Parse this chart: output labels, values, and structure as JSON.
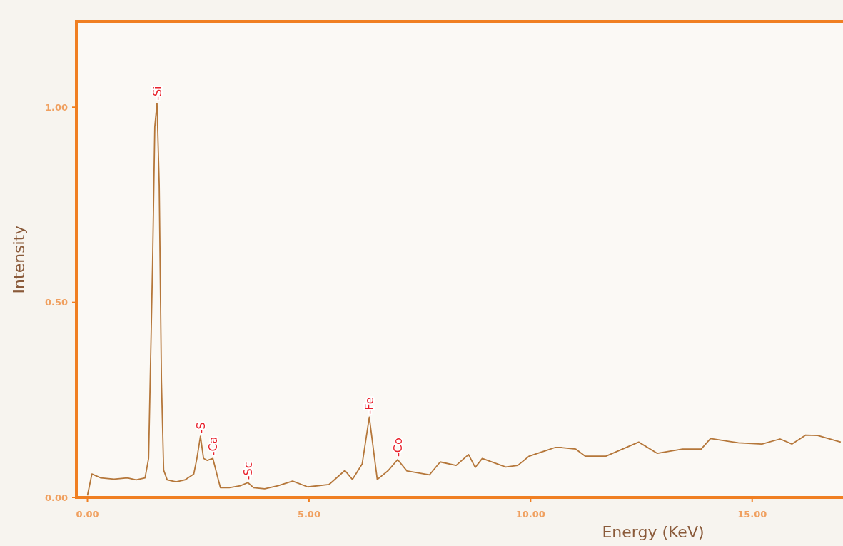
{
  "chart_data": {
    "type": "line",
    "xlabel": "Energy (KeV)",
    "ylabel": "Intensity",
    "xlim": [
      -0.25,
      17.05
    ],
    "ylim": [
      0,
      1.22
    ],
    "xticks": [
      {
        "value": 0,
        "label": "0.00"
      },
      {
        "value": 5,
        "label": "5.00"
      },
      {
        "value": 10,
        "label": "10.00"
      },
      {
        "value": 15,
        "label": "15.00"
      }
    ],
    "yticks": [
      {
        "value": 0,
        "label": "0.00"
      },
      {
        "value": 0.5,
        "label": "0.50"
      },
      {
        "value": 1,
        "label": "1.00"
      }
    ],
    "grid": false,
    "marker": "none",
    "line_style": "solid",
    "series": [
      {
        "color": "#b5773a",
        "x": [
          0,
          0.1,
          0.3,
          0.6,
          0.9,
          1.1,
          1.3,
          1.38,
          1.47,
          1.52,
          1.57,
          1.62,
          1.67,
          1.72,
          1.8,
          2.0,
          2.2,
          2.4,
          2.47,
          2.55,
          2.62,
          2.7,
          2.83,
          2.92,
          3.0,
          3.2,
          3.45,
          3.62,
          3.75,
          4.0,
          4.3,
          4.63,
          4.97,
          5.45,
          5.81,
          5.98,
          6.2,
          6.36,
          6.54,
          6.78,
          7.0,
          7.21,
          7.72,
          7.96,
          8.32,
          8.6,
          8.75,
          8.91,
          9.44,
          9.71,
          9.97,
          10.55,
          10.7,
          11.02,
          11.23,
          11.7,
          12.44,
          12.86,
          13.43,
          13.85,
          14.06,
          14.69,
          15.22,
          15.63,
          15.9,
          16.21,
          16.48,
          17.0
        ],
        "values": [
          0.005,
          0.06,
          0.05,
          0.047,
          0.05,
          0.045,
          0.05,
          0.1,
          0.6,
          0.95,
          1.01,
          0.8,
          0.3,
          0.07,
          0.045,
          0.04,
          0.045,
          0.06,
          0.1,
          0.157,
          0.1,
          0.095,
          0.1,
          0.06,
          0.025,
          0.025,
          0.03,
          0.038,
          0.025,
          0.022,
          0.03,
          0.042,
          0.027,
          0.033,
          0.069,
          0.046,
          0.086,
          0.206,
          0.046,
          0.068,
          0.097,
          0.068,
          0.058,
          0.091,
          0.082,
          0.11,
          0.077,
          0.1,
          0.078,
          0.082,
          0.106,
          0.128,
          0.128,
          0.124,
          0.106,
          0.106,
          0.142,
          0.113,
          0.124,
          0.124,
          0.151,
          0.14,
          0.137,
          0.15,
          0.137,
          0.16,
          0.159,
          0.142
        ]
      }
    ],
    "annotations": [
      {
        "text": "-Si",
        "x": 1.57,
        "y": 1.01
      },
      {
        "text": "-S",
        "x": 2.55,
        "y": 0.157
      },
      {
        "text": "-Ca",
        "x": 2.83,
        "y": 0.1
      },
      {
        "text": "-Sc",
        "x": 3.62,
        "y": 0.038
      },
      {
        "text": "-Fe",
        "x": 6.36,
        "y": 0.206
      },
      {
        "text": "-Co",
        "x": 7.0,
        "y": 0.097
      }
    ]
  }
}
